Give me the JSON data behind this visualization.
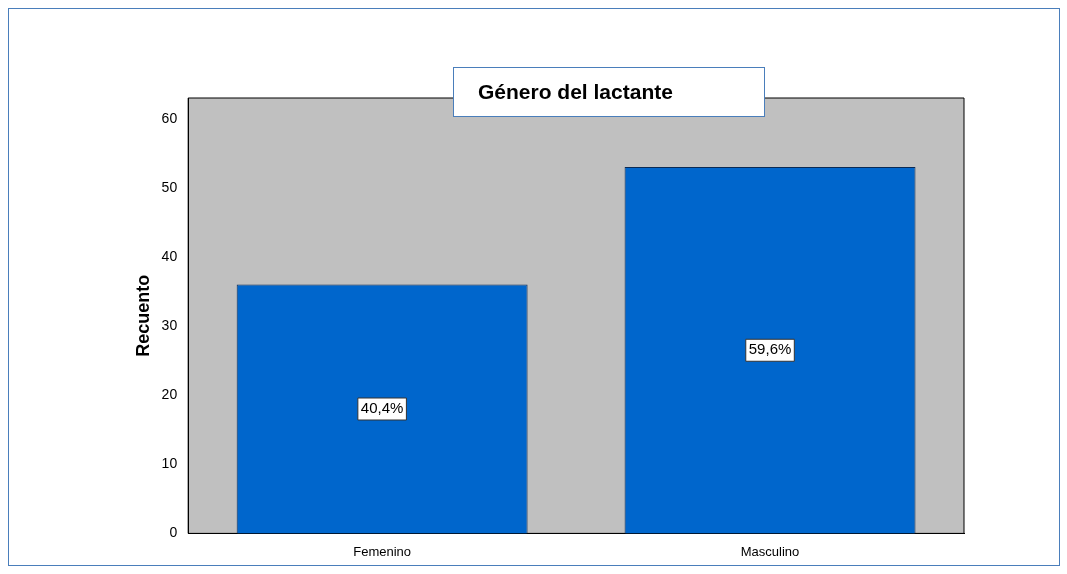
{
  "chart_data": {
    "type": "bar",
    "title": "Género del lactante",
    "ylabel": "Recuento",
    "categories": [
      "Femenino",
      "Masculino"
    ],
    "values": [
      36,
      53
    ],
    "color": "#0066cc",
    "ylim": [
      0,
      63
    ],
    "yticks": [
      0,
      10,
      20,
      30,
      40,
      50,
      60
    ],
    "grid": false,
    "legend": false,
    "annotations": [
      "40,4%",
      "59,6%"
    ]
  }
}
